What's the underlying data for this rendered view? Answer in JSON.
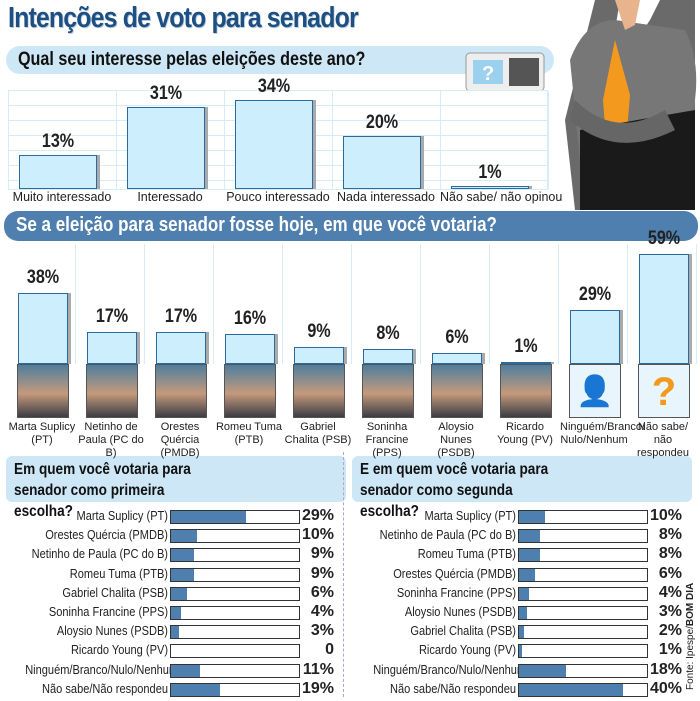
{
  "title": "Intenções de voto para senador",
  "source_prefix": "Fonte: Ipespe/",
  "source_brand": "BOM DIA",
  "chart_data": [
    {
      "type": "bar",
      "title": "Qual seu interesse pelas eleições deste ano?",
      "categories": [
        "Muito interessado",
        "Interessado",
        "Pouco interessado",
        "Nada interessado",
        "Não sabe/ não opinou"
      ],
      "values": [
        13,
        31,
        34,
        20,
        1
      ],
      "labels": [
        "13%",
        "31%",
        "34%",
        "20%",
        "1%"
      ],
      "ylim": [
        0,
        38
      ]
    },
    {
      "type": "bar",
      "title": "Se a eleição para senador fosse hoje, em que você votaria?",
      "categories": [
        "Marta Suplicy (PT)",
        "Netinho de Paula (PC do B)",
        "Orestes Quércia (PMDB)",
        "Romeu Tuma (PTB)",
        "Gabriel Chalita (PSB)",
        "Soninha Francine (PPS)",
        "Aloysio Nunes (PSDB)",
        "Ricardo Young (PV)",
        "Ninguém/Branco/ Nulo/Nenhum",
        "Não sabe/ não respondeu"
      ],
      "values": [
        38,
        17,
        17,
        16,
        9,
        8,
        6,
        1,
        29,
        59
      ],
      "labels": [
        "38%",
        "17%",
        "17%",
        "16%",
        "9%",
        "8%",
        "6%",
        "1%",
        "29%",
        "59%"
      ],
      "ylim": [
        0,
        62
      ]
    },
    {
      "type": "bar",
      "orientation": "horizontal",
      "title": "Em quem você votaria para senador como primeira escolha?",
      "categories": [
        "Marta Suplicy (PT)",
        "Orestes Quércia (PMDB)",
        "Netinho de Paula (PC do B)",
        "Romeu Tuma (PTB)",
        "Gabriel Chalita (PSB)",
        "Soninha Francine (PPS)",
        "Aloysio Nunes (PSDB)",
        "Ricardo Young (PV)",
        "Ninguém/Branco/Nulo/Nenhum",
        "Não sabe/Não respondeu"
      ],
      "values": [
        29,
        10,
        9,
        9,
        6,
        4,
        3,
        0,
        11,
        19
      ],
      "labels": [
        "29%",
        "10%",
        "9%",
        "9%",
        "6%",
        "4%",
        "3%",
        "0",
        "11%",
        "19%"
      ],
      "xlim": [
        0,
        50
      ]
    },
    {
      "type": "bar",
      "orientation": "horizontal",
      "title": "E em quem você votaria para senador como segunda escolha?",
      "categories": [
        "Marta Suplicy (PT)",
        "Netinho de Paula (PC do B)",
        "Romeu Tuma (PTB)",
        "Orestes Quércia (PMDB)",
        "Soninha Francine (PPS)",
        "Aloysio Nunes (PSDB)",
        "Gabriel Chalita (PSB)",
        "Ricardo Young (PV)",
        "Ninguém/Branco/Nulo/Nenhum",
        "Não sabe/Não respondeu"
      ],
      "values": [
        10,
        8,
        8,
        6,
        4,
        3,
        2,
        1,
        18,
        40
      ],
      "labels": [
        "10%",
        "8%",
        "8%",
        "6%",
        "4%",
        "3%",
        "2%",
        "1%",
        "18%",
        "40%"
      ],
      "xlim": [
        0,
        50
      ]
    }
  ]
}
